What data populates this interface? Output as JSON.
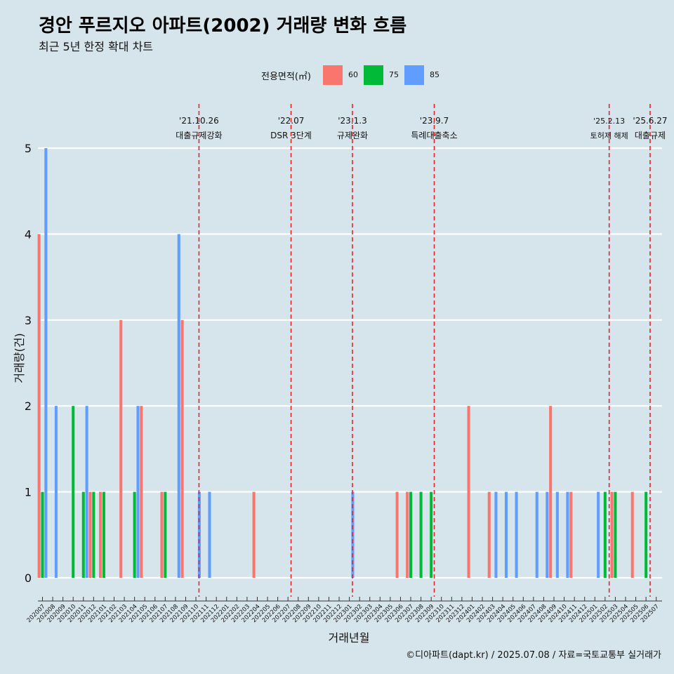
{
  "title": "경안 푸르지오 아파트(2002) 거래량 변화 흐름",
  "subtitle": "최근 5년 한정 확대 차트",
  "caption": "©디아파트(dapt.kr) / 2025.07.08 / 자료=국토교통부 실거래가",
  "legend": {
    "title": "전용면적(㎡)",
    "items": [
      {
        "label": "60",
        "color": "#f8766d"
      },
      {
        "label": "75",
        "color": "#00ba38"
      },
      {
        "label": "85",
        "color": "#619cff"
      }
    ]
  },
  "chart_data": {
    "type": "bar",
    "xlabel": "거래년월",
    "ylabel": "거래량(건)",
    "ylim": [
      0,
      5
    ],
    "yticks": [
      0,
      1,
      2,
      3,
      4,
      5
    ],
    "grid": true,
    "legend_position": "top",
    "categories": [
      "202007",
      "202008",
      "202009",
      "202010",
      "202011",
      "202012",
      "202101",
      "202102",
      "202103",
      "202104",
      "202105",
      "202106",
      "202107",
      "202108",
      "202109",
      "202110",
      "202111",
      "202112",
      "202201",
      "202202",
      "202203",
      "202204",
      "202205",
      "202206",
      "202207",
      "202208",
      "202209",
      "202210",
      "202211",
      "202212",
      "202301",
      "202302",
      "202303",
      "202304",
      "202305",
      "202306",
      "202307",
      "202308",
      "202309",
      "202310",
      "202311",
      "202312",
      "202401",
      "202402",
      "202403",
      "202404",
      "202405",
      "202406",
      "202407",
      "202408",
      "202409",
      "202410",
      "202411",
      "202412",
      "202501",
      "202502",
      "202503",
      "202504",
      "202505",
      "202506",
      "202507"
    ],
    "series": [
      {
        "name": "60",
        "color": "#f8766d",
        "values": [
          4,
          0,
          0,
          0,
          0,
          1,
          1,
          0,
          3,
          0,
          2,
          0,
          1,
          0,
          3,
          0,
          0,
          0,
          0,
          0,
          0,
          1,
          0,
          0,
          0,
          0,
          0,
          0,
          0,
          0,
          0,
          0,
          0,
          0,
          0,
          1,
          1,
          0,
          0,
          0,
          0,
          0,
          2,
          0,
          1,
          0,
          0,
          0,
          0,
          0,
          2,
          0,
          1,
          0,
          0,
          0,
          1,
          0,
          1,
          0,
          0
        ]
      },
      {
        "name": "75",
        "color": "#00ba38",
        "values": [
          1,
          0,
          0,
          2,
          1,
          1,
          1,
          0,
          0,
          1,
          0,
          0,
          1,
          0,
          0,
          0,
          0,
          0,
          0,
          0,
          0,
          0,
          0,
          0,
          0,
          0,
          0,
          0,
          0,
          0,
          0,
          0,
          0,
          0,
          0,
          0,
          1,
          1,
          1,
          0,
          0,
          0,
          0,
          0,
          0,
          0,
          0,
          0,
          0,
          0,
          0,
          0,
          0,
          0,
          0,
          1,
          1,
          0,
          0,
          1,
          0
        ]
      },
      {
        "name": "85",
        "color": "#619cff",
        "values": [
          5,
          2,
          0,
          0,
          2,
          0,
          0,
          0,
          0,
          2,
          0,
          0,
          0,
          4,
          0,
          1,
          1,
          0,
          0,
          0,
          0,
          0,
          0,
          0,
          0,
          0,
          0,
          0,
          0,
          0,
          1,
          0,
          0,
          0,
          0,
          0,
          0,
          0,
          0,
          0,
          0,
          0,
          0,
          0,
          1,
          1,
          1,
          0,
          1,
          1,
          1,
          1,
          0,
          0,
          1,
          0,
          0,
          0,
          0,
          0,
          0
        ]
      }
    ],
    "annotations": [
      {
        "date": "'21.10.26",
        "label": "대출규제강화",
        "x": 15.3
      },
      {
        "date": "'22.07",
        "label": "DSR 3단계",
        "x": 24.3
      },
      {
        "date": "'23.1.3",
        "label": "규제완화",
        "x": 30.3
      },
      {
        "date": "'23.9.7",
        "label": "특례대출축소",
        "x": 38.3
      },
      {
        "date": "'25.2.13",
        "label": "토허제 해제",
        "x": 55.4
      },
      {
        "date": "'25.6.27",
        "label": "대출규제",
        "x": 59.4
      }
    ]
  }
}
